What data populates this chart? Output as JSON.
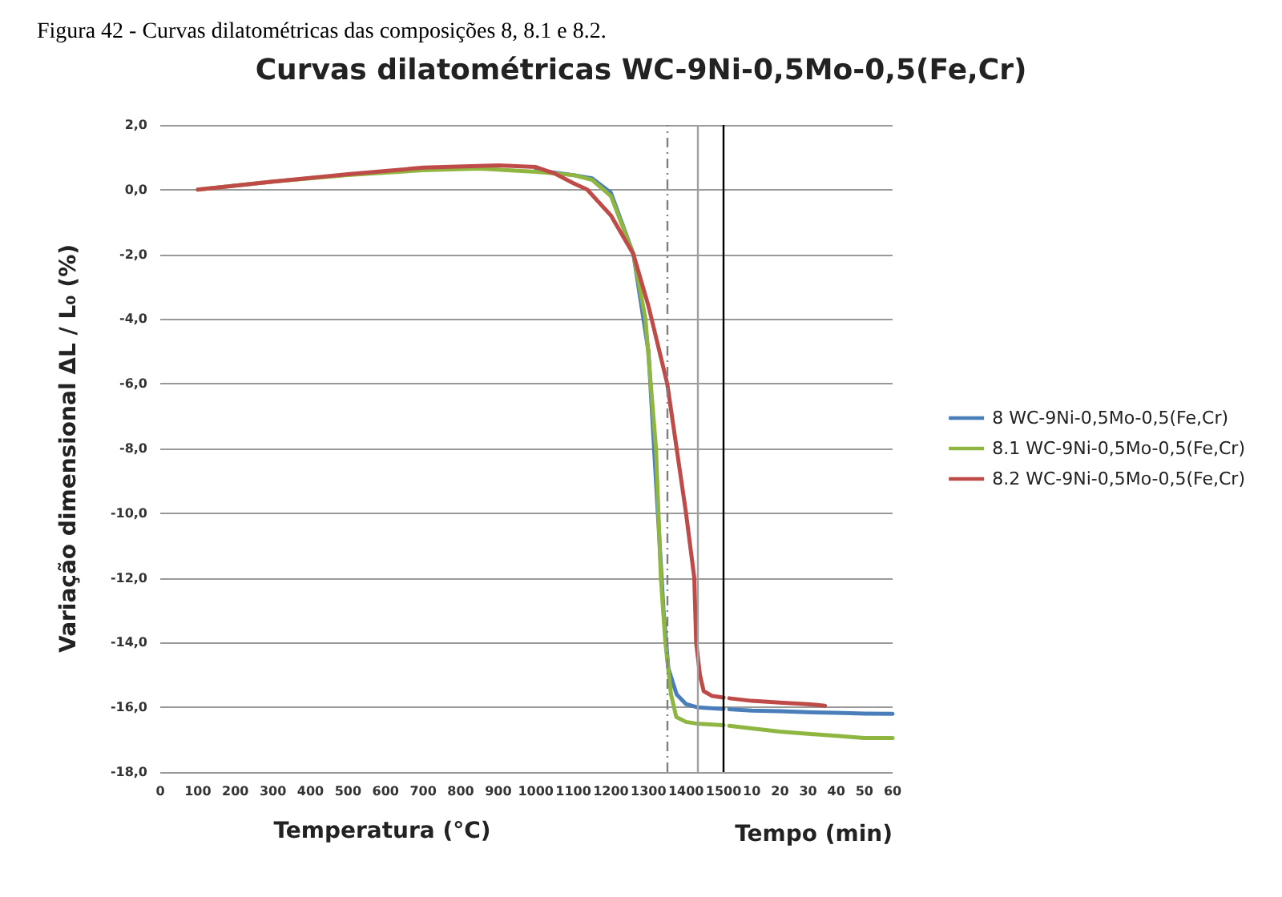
{
  "chart_data": {
    "type": "line",
    "title": "Curvas dilatométricas WC-9Ni-0,5Mo-0,5(Fe,Cr)",
    "subtitle": "Figura 42 - Curvas dilatométricas das composições 8, 8.1 e 8.2.",
    "xlabel": "Temperatura (°C)",
    "x2label": "Tempo (min)",
    "ylabel": "Variação dimensional ΔL / L₀ (%)",
    "xlim": [
      0,
      1950
    ],
    "xticks": [
      0,
      100,
      200,
      300,
      400,
      500,
      600,
      700,
      800,
      900,
      1000,
      1100,
      1200,
      1300,
      1400,
      1500
    ],
    "x2lim": [
      -200,
      60
    ],
    "x2ticks": [
      10,
      20,
      30,
      40,
      50,
      60
    ],
    "ylim": [
      -18,
      2
    ],
    "yticks": [
      {
        "value": -18,
        "label": "-18,0"
      },
      {
        "value": -16,
        "label": "-16,0"
      },
      {
        "value": -14,
        "label": "-14,0"
      },
      {
        "value": -12,
        "label": "-12,0"
      },
      {
        "value": -10,
        "label": "-10,0"
      },
      {
        "value": -8,
        "label": "-8,0"
      },
      {
        "value": -6,
        "label": "-6,0"
      },
      {
        "value": -4,
        "label": "-4,0"
      },
      {
        "value": -2,
        "label": "-2,0"
      },
      {
        "value": 0,
        "label": "0,0"
      },
      {
        "value": 2,
        "label": "2,0"
      }
    ],
    "grid": "y",
    "legend": "right",
    "marker": "none",
    "line_style": "solid",
    "ref_lines": [
      {
        "axis": "x",
        "value": 1350,
        "color": "#808080",
        "line_style": "dashed"
      },
      {
        "axis": "x",
        "value": 1430,
        "color": "#a0a0a0",
        "line_style": "solid"
      },
      {
        "axis": "x",
        "value": 1500,
        "color": "#000000",
        "line_style": "solid"
      }
    ],
    "series": [
      {
        "name": "8 WC-9Ni-0,5Mo-0,5(Fe,Cr)",
        "color": "#4a7ebb",
        "x": [
          1000,
          1100,
          1150,
          1200,
          1260,
          1300,
          1340,
          1353,
          1375,
          1400,
          1430,
          1500
        ],
        "values": [
          0.6,
          0.45,
          0.35,
          -0.1,
          -2,
          -5,
          -13,
          -14.8,
          -15.6,
          -15.9,
          -16,
          -16.05
        ]
      },
      {
        "name": "8.1 WC-9Ni-0,5Mo-0,5(Fe,Cr)",
        "color": "#8fb641",
        "x": [
          100,
          300,
          500,
          700,
          850,
          1000,
          1100,
          1150,
          1200,
          1260,
          1292,
          1320,
          1333,
          1345,
          1360,
          1374,
          1400,
          1427,
          1500
        ],
        "values": [
          0,
          0.25,
          0.45,
          0.6,
          0.65,
          0.55,
          0.45,
          0.3,
          -0.2,
          -2,
          -4,
          -8,
          -12,
          -14,
          -15.6,
          -16.3,
          -16.45,
          -16.5,
          -16.55
        ]
      },
      {
        "name": "8.2 WC-9Ni-0,5Mo-0,5(Fe,Cr)",
        "color": "#be4b48",
        "x": [
          100,
          300,
          500,
          700,
          900,
          1000,
          1050,
          1100,
          1137,
          1200,
          1260,
          1300,
          1350,
          1400,
          1422,
          1427,
          1437,
          1447,
          1470,
          1500
        ],
        "values": [
          0,
          0.25,
          0.48,
          0.68,
          0.75,
          0.7,
          0.5,
          0.2,
          0,
          -0.8,
          -2,
          -3.6,
          -6,
          -10,
          -12,
          -14,
          -15,
          -15.5,
          -15.65,
          -15.7
        ]
      },
      {
        "axis": "x2",
        "color": "#4a7ebb",
        "x": [
          2,
          10,
          20,
          30,
          40,
          50,
          60
        ],
        "values": [
          -16.06,
          -16.1,
          -16.12,
          -16.15,
          -16.17,
          -16.19,
          -16.2
        ]
      },
      {
        "axis": "x2",
        "color": "#8fb641",
        "x": [
          2,
          10,
          20,
          30,
          40,
          50,
          60
        ],
        "values": [
          -16.57,
          -16.65,
          -16.75,
          -16.82,
          -16.88,
          -16.95,
          -16.95
        ]
      },
      {
        "axis": "x2",
        "color": "#be4b48",
        "x": [
          2,
          10,
          20,
          30,
          36
        ],
        "values": [
          -15.72,
          -15.8,
          -15.85,
          -15.9,
          -15.95
        ]
      }
    ]
  }
}
